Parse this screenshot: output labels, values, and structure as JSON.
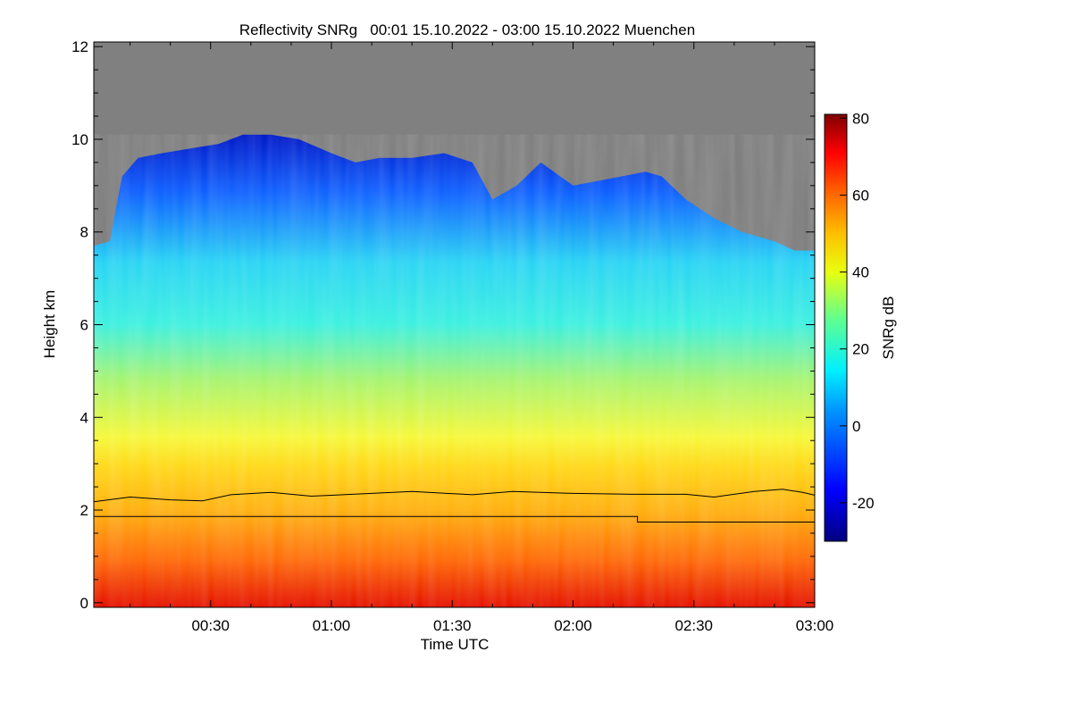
{
  "chart_data": {
    "type": "heatmap",
    "title": "Reflectivity SNRg   00:01 15.10.2022 - 03:00 15.10.2022 Muenchen",
    "xlabel": "Time UTC",
    "ylabel": "Height km",
    "x_ticks": [
      "00:30",
      "01:00",
      "01:30",
      "02:00",
      "02:30",
      "03:00"
    ],
    "x_tick_minutes": [
      30,
      60,
      90,
      120,
      150,
      180
    ],
    "xlim_minutes": [
      1,
      180
    ],
    "y_ticks": [
      0,
      2,
      4,
      6,
      8,
      10,
      12
    ],
    "ylim": [
      -0.1,
      12.1
    ],
    "colorbar": {
      "label": "SNRg dB",
      "ticks": [
        -20,
        0,
        20,
        40,
        60,
        80
      ],
      "range": [
        -30,
        81
      ]
    },
    "cloud_top_km": [
      [
        1,
        7.7
      ],
      [
        5,
        7.8
      ],
      [
        8,
        9.2
      ],
      [
        12,
        9.6
      ],
      [
        18,
        9.7
      ],
      [
        25,
        9.8
      ],
      [
        32,
        9.9
      ],
      [
        38,
        10.1
      ],
      [
        45,
        10.1
      ],
      [
        52,
        10.0
      ],
      [
        60,
        9.7
      ],
      [
        66,
        9.5
      ],
      [
        72,
        9.6
      ],
      [
        80,
        9.6
      ],
      [
        88,
        9.7
      ],
      [
        95,
        9.5
      ],
      [
        100,
        8.7
      ],
      [
        106,
        9.0
      ],
      [
        112,
        9.5
      ],
      [
        120,
        9.0
      ],
      [
        126,
        9.1
      ],
      [
        132,
        9.2
      ],
      [
        138,
        9.3
      ],
      [
        142,
        9.2
      ],
      [
        148,
        8.7
      ],
      [
        155,
        8.3
      ],
      [
        162,
        8.0
      ],
      [
        170,
        7.8
      ],
      [
        175,
        7.6
      ],
      [
        180,
        7.6
      ]
    ],
    "lines": [
      {
        "points_km": [
          [
            1,
            2.18
          ],
          [
            10,
            2.28
          ],
          [
            20,
            2.22
          ],
          [
            28,
            2.2
          ],
          [
            35,
            2.33
          ],
          [
            45,
            2.38
          ],
          [
            55,
            2.3
          ],
          [
            70,
            2.36
          ],
          [
            80,
            2.4
          ],
          [
            95,
            2.33
          ],
          [
            105,
            2.4
          ],
          [
            120,
            2.36
          ],
          [
            135,
            2.34
          ],
          [
            148,
            2.34
          ],
          [
            155,
            2.28
          ],
          [
            165,
            2.4
          ],
          [
            172,
            2.45
          ],
          [
            177,
            2.38
          ],
          [
            180,
            2.32
          ]
        ]
      },
      {
        "points_km": [
          [
            1,
            1.86
          ],
          [
            136,
            1.86
          ],
          [
            136,
            1.74
          ],
          [
            180,
            1.74
          ]
        ]
      }
    ]
  }
}
